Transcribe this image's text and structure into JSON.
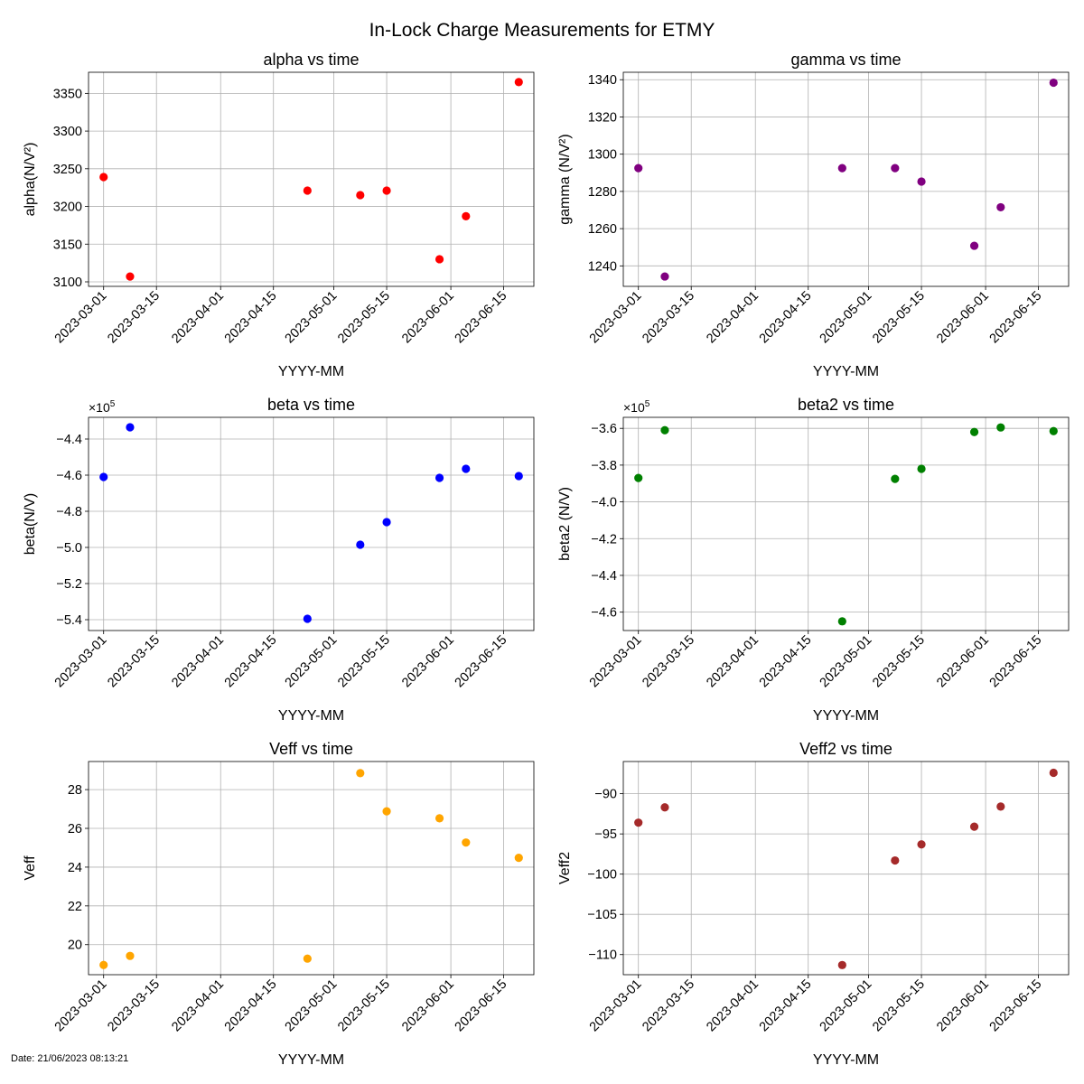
{
  "figure": {
    "suptitle": "In-Lock Charge Measurements for ETMY",
    "footer": "Date: 21/06/2023 08:13:21"
  },
  "chart_data": [
    {
      "id": "alpha",
      "type": "scatter",
      "title": "alpha vs time",
      "xlabel": "YYYY-MM",
      "ylabel": "alpha(N/V²)",
      "color": "#ff0000",
      "offset_text": "",
      "y_scale": 1,
      "ylim": [
        3094,
        3378
      ],
      "yticks": [
        3100,
        3150,
        3200,
        3250,
        3300,
        3350
      ],
      "ytick_labels": [
        "3100",
        "3150",
        "3200",
        "3250",
        "3300",
        "3350"
      ],
      "x": [
        "2023-03-01",
        "2023-03-08",
        "2023-04-24",
        "2023-05-08",
        "2023-05-15",
        "2023-05-29",
        "2023-06-05",
        "2023-06-19"
      ],
      "y": [
        3239,
        3107,
        3221,
        3215,
        3221,
        3130,
        3187,
        3365
      ]
    },
    {
      "id": "gamma",
      "type": "scatter",
      "title": "gamma vs time",
      "xlabel": "YYYY-MM",
      "ylabel": "gamma (N/V²)",
      "color": "#800080",
      "offset_text": "",
      "y_scale": 1,
      "ylim": [
        1229,
        1344
      ],
      "yticks": [
        1240,
        1260,
        1280,
        1300,
        1320,
        1340
      ],
      "ytick_labels": [
        "1240",
        "1260",
        "1280",
        "1300",
        "1320",
        "1340"
      ],
      "x": [
        "2023-03-01",
        "2023-03-08",
        "2023-04-24",
        "2023-05-08",
        "2023-05-15",
        "2023-05-29",
        "2023-06-05",
        "2023-06-19"
      ],
      "y": [
        1292.5,
        1234.3,
        1292.5,
        1292.5,
        1285.3,
        1250.8,
        1271.5,
        1338.4
      ]
    },
    {
      "id": "beta",
      "type": "scatter",
      "title": "beta vs time",
      "xlabel": "YYYY-MM",
      "ylabel": "beta(N/V)",
      "color": "#0000ff",
      "offset_text": "×10",
      "offset_exp": "5",
      "y_scale": 100000,
      "ylim": [
        -546000,
        -428000
      ],
      "yticks": [
        -540000,
        -520000,
        -500000,
        -480000,
        -460000,
        -440000
      ],
      "ytick_labels": [
        "−5.4",
        "−5.2",
        "−5.0",
        "−4.8",
        "−4.6",
        "−4.4"
      ],
      "x": [
        "2023-03-01",
        "2023-03-08",
        "2023-04-24",
        "2023-05-08",
        "2023-05-15",
        "2023-05-29",
        "2023-06-05",
        "2023-06-19"
      ],
      "y": [
        -461000,
        -433500,
        -539500,
        -498500,
        -486000,
        -461500,
        -456500,
        -460500
      ]
    },
    {
      "id": "beta2",
      "type": "scatter",
      "title": "beta2 vs time",
      "xlabel": "YYYY-MM",
      "ylabel": "beta2 (N/V)",
      "color": "#008000",
      "offset_text": "×10",
      "offset_exp": "5",
      "y_scale": 100000,
      "ylim": [
        -470000,
        -354000
      ],
      "yticks": [
        -460000,
        -440000,
        -420000,
        -400000,
        -380000,
        -360000
      ],
      "ytick_labels": [
        "−4.6",
        "−4.4",
        "−4.2",
        "−4.0",
        "−3.8",
        "−3.6"
      ],
      "x": [
        "2023-03-01",
        "2023-03-08",
        "2023-04-24",
        "2023-05-08",
        "2023-05-15",
        "2023-05-29",
        "2023-06-05",
        "2023-06-19"
      ],
      "y": [
        -387000,
        -361000,
        -465000,
        -387500,
        -382000,
        -362000,
        -359500,
        -361500
      ]
    },
    {
      "id": "veff",
      "type": "scatter",
      "title": "Veff vs time",
      "xlabel": "YYYY-MM",
      "ylabel": "Veff",
      "color": "#ffa500",
      "offset_text": "",
      "y_scale": 1,
      "ylim": [
        18.45,
        29.45
      ],
      "yticks": [
        20,
        22,
        24,
        26,
        28
      ],
      "ytick_labels": [
        "20",
        "22",
        "24",
        "26",
        "28"
      ],
      "x": [
        "2023-03-01",
        "2023-03-08",
        "2023-04-24",
        "2023-05-08",
        "2023-05-15",
        "2023-05-29",
        "2023-06-05",
        "2023-06-19"
      ],
      "y": [
        18.95,
        19.42,
        19.28,
        28.85,
        26.88,
        26.52,
        25.27,
        24.48
      ]
    },
    {
      "id": "veff2",
      "type": "scatter",
      "title": "Veff2 vs time",
      "xlabel": "YYYY-MM",
      "ylabel": "Veff2",
      "color": "#a52a2a",
      "offset_text": "",
      "y_scale": 1,
      "ylim": [
        -112.5,
        -86.0
      ],
      "yticks": [
        -110,
        -105,
        -100,
        -95,
        -90
      ],
      "ytick_labels": [
        "−110",
        "−105",
        "−100",
        "−95",
        "−90"
      ],
      "x": [
        "2023-03-01",
        "2023-03-08",
        "2023-04-24",
        "2023-05-08",
        "2023-05-15",
        "2023-05-29",
        "2023-06-05",
        "2023-06-19"
      ],
      "y": [
        -93.6,
        -91.7,
        -111.3,
        -98.3,
        -96.3,
        -94.1,
        -91.6,
        -87.4
      ]
    }
  ],
  "shared_x": {
    "xlim": [
      "2023-02-25",
      "2023-06-23"
    ],
    "xticks": [
      "2023-03-01",
      "2023-03-15",
      "2023-04-01",
      "2023-04-15",
      "2023-05-01",
      "2023-05-15",
      "2023-06-01",
      "2023-06-15"
    ],
    "xtick_labels": [
      "2023-03-01",
      "2023-03-15",
      "2023-04-01",
      "2023-04-15",
      "2023-05-01",
      "2023-05-15",
      "2023-06-01",
      "2023-06-15"
    ],
    "grid": true
  }
}
